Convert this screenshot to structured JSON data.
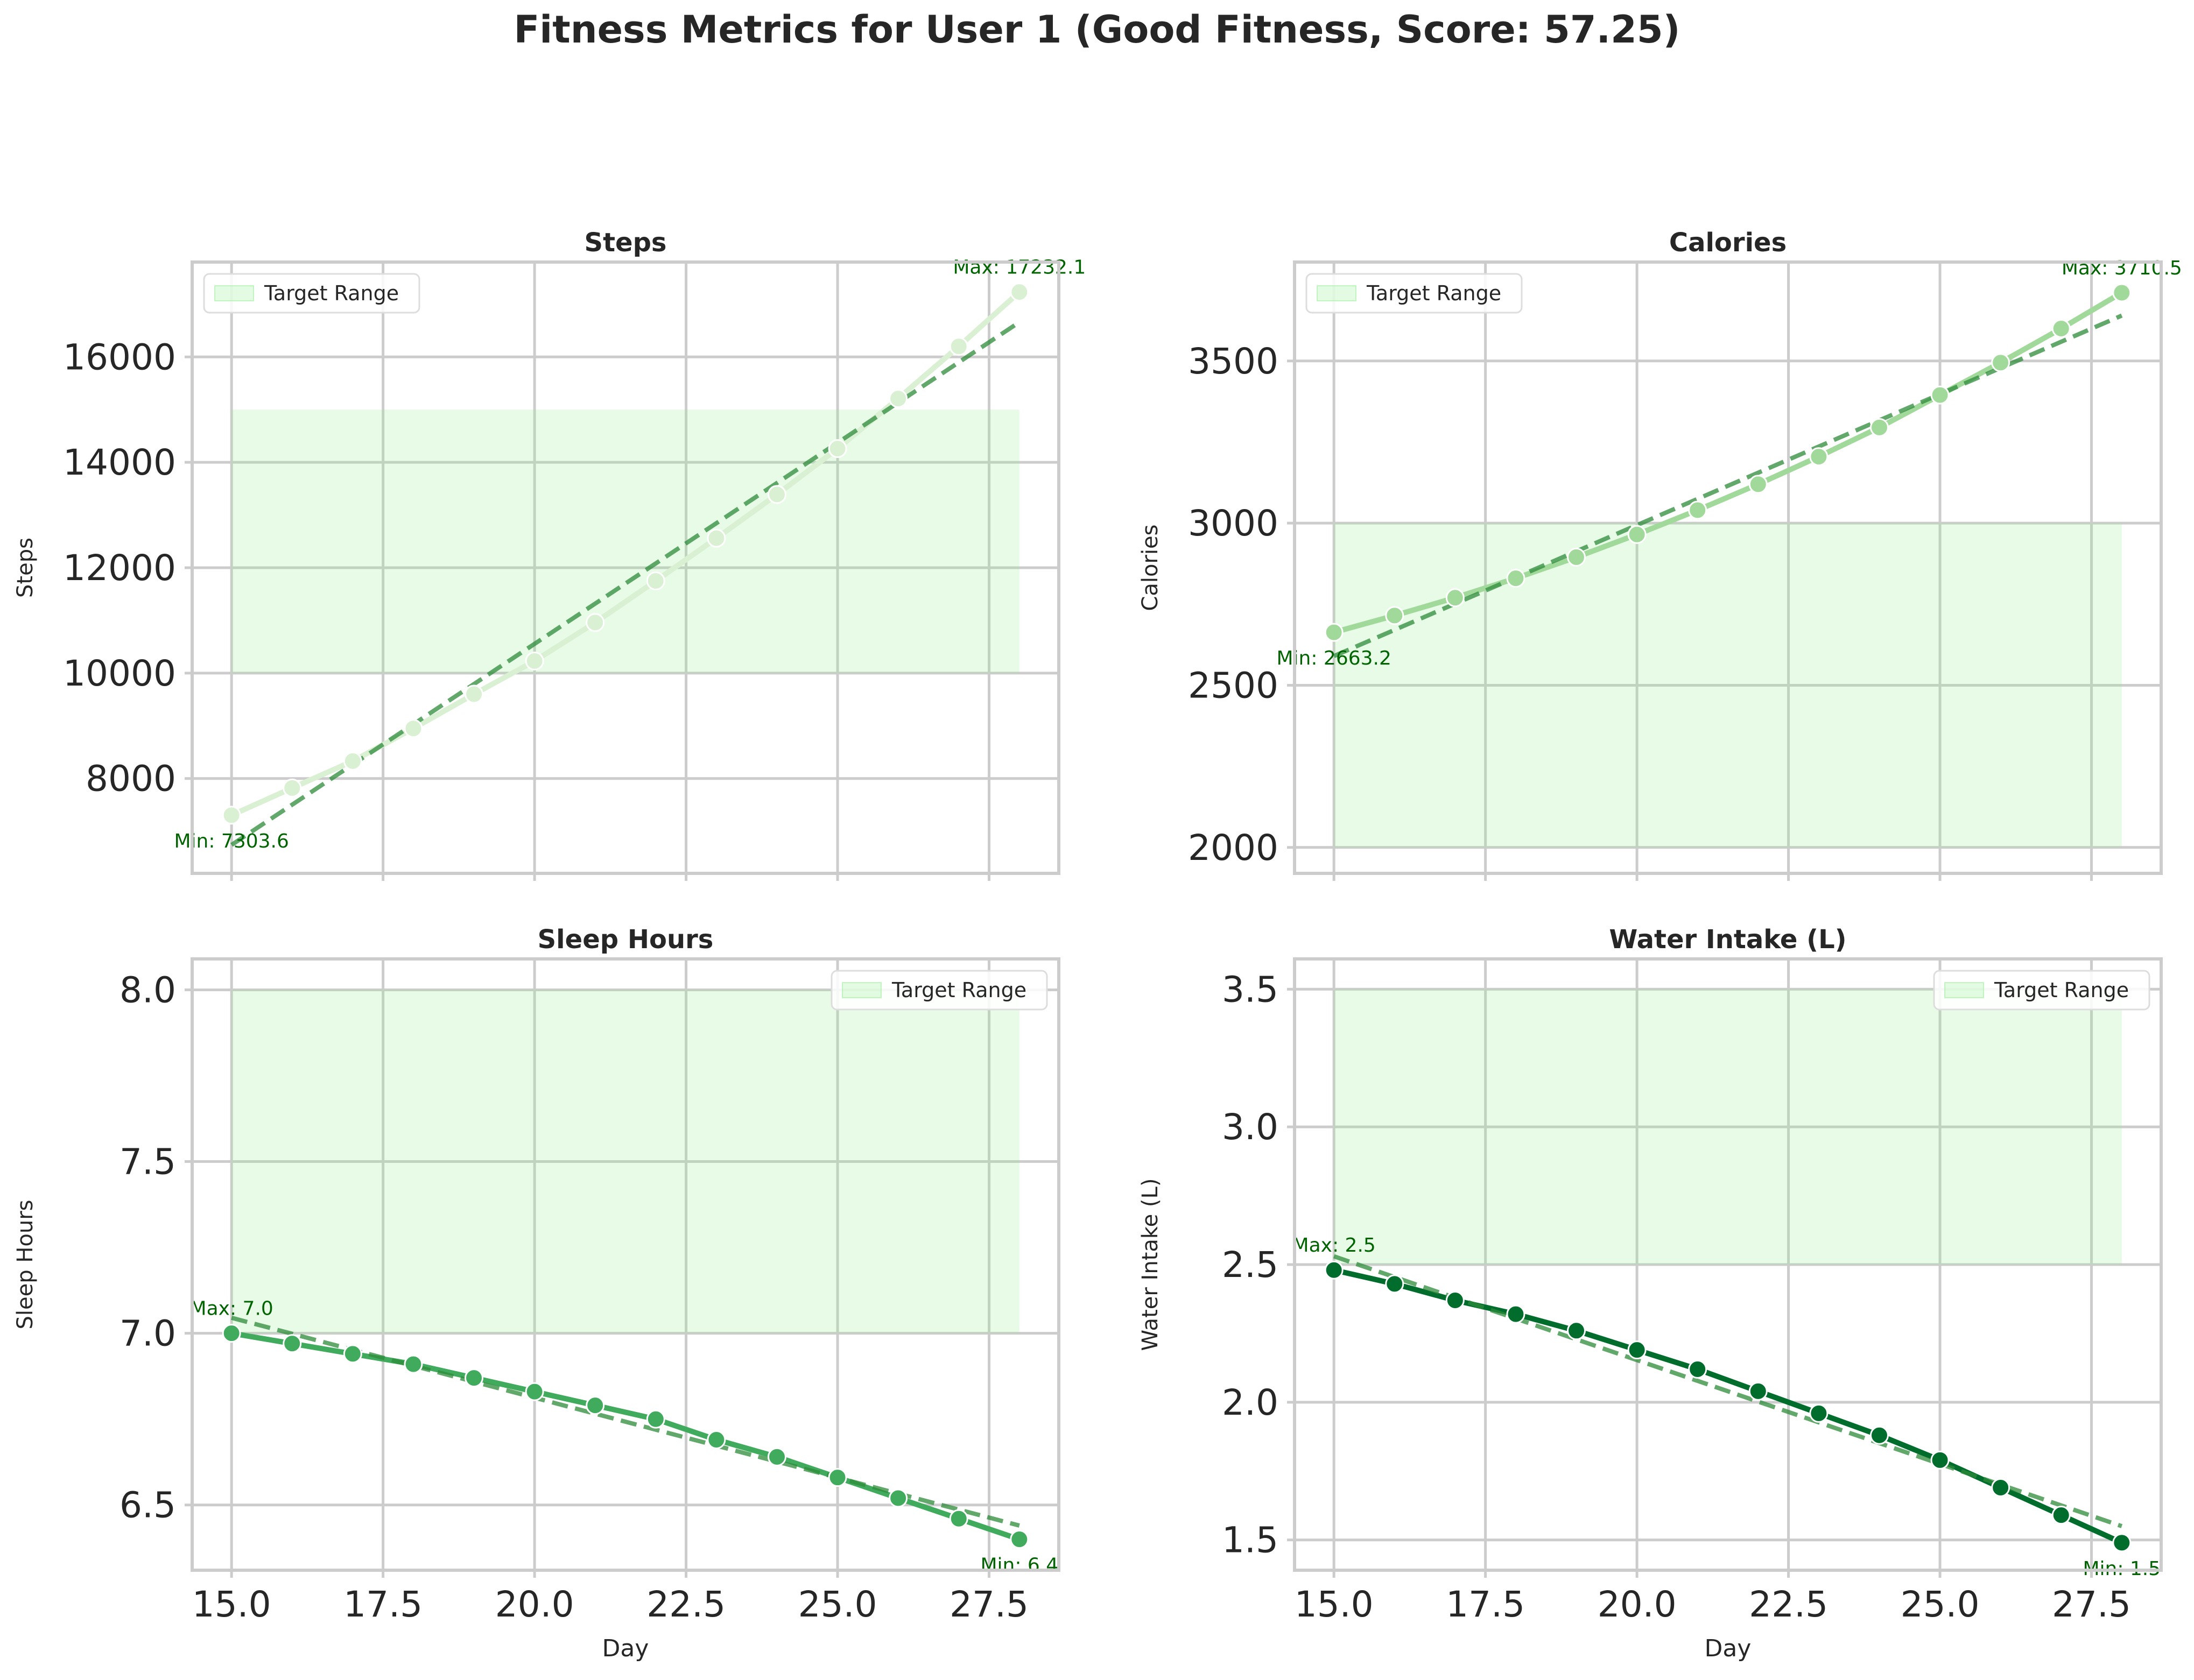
{
  "figure": {
    "title": "Fitness Metrics for User 1 (Good Fitness, Score: 57.25)"
  },
  "chart_data": [
    {
      "type": "line",
      "title": "Steps",
      "xlabel": "",
      "ylabel": "Steps",
      "x": [
        15,
        16,
        17,
        18,
        19,
        20,
        21,
        22,
        23,
        24,
        25,
        26,
        27,
        28
      ],
      "series": [
        {
          "values": [
            7303.6,
            7820,
            8330,
            8950,
            9600,
            10230,
            10960,
            11750,
            12560,
            13390,
            14260,
            15210,
            16200,
            17232.1
          ],
          "color": "#d9f0d3"
        }
      ],
      "trend": {
        "start": 6740,
        "end": 16660,
        "color": "#2e8b3a"
      },
      "target_range": {
        "low": 10000,
        "high": 15000,
        "label": "Target Range",
        "color": "#90ee90"
      },
      "annotations": {
        "max": "Max: 17232.1",
        "min": "Min: 7303.6",
        "max_value": 17232.1,
        "min_value": 7303.6
      },
      "xlim": [
        14.35,
        28.65
      ],
      "ylim": [
        6200,
        17800
      ],
      "xticks": [
        15.0,
        17.5,
        20.0,
        22.5,
        25.0,
        27.5
      ],
      "xtick_labels": [],
      "yticks": [
        8000,
        10000,
        12000,
        14000,
        16000
      ],
      "ytick_labels": [
        "8000",
        "10000",
        "12000",
        "14000",
        "16000"
      ],
      "legend_position": "upper left",
      "grid": true
    },
    {
      "type": "line",
      "title": "Calories",
      "xlabel": "",
      "ylabel": "Calories",
      "x": [
        15,
        16,
        17,
        18,
        19,
        20,
        21,
        22,
        23,
        24,
        25,
        26,
        27,
        28
      ],
      "series": [
        {
          "values": [
            2663.2,
            2715,
            2770,
            2830,
            2895,
            2965,
            3040,
            3120,
            3205,
            3295,
            3395,
            3495,
            3600,
            3710.5
          ],
          "color": "#a1d99b"
        }
      ],
      "trend": {
        "start": 2590,
        "end": 3640,
        "color": "#2e8b3a"
      },
      "target_range": {
        "low": 2000,
        "high": 3000,
        "label": "Target Range",
        "color": "#90ee90"
      },
      "annotations": {
        "max": "Max: 3710.5",
        "min": "Min: 2663.2",
        "max_value": 3710.5,
        "min_value": 2663.2
      },
      "xlim": [
        14.35,
        28.65
      ],
      "ylim": [
        1920,
        3805
      ],
      "xticks": [
        15.0,
        17.5,
        20.0,
        22.5,
        25.0,
        27.5
      ],
      "xtick_labels": [],
      "yticks": [
        2000,
        2500,
        3000,
        3500
      ],
      "ytick_labels": [
        "2000",
        "2500",
        "3000",
        "3500"
      ],
      "legend_position": "upper left",
      "grid": true
    },
    {
      "type": "line",
      "title": "Sleep Hours",
      "xlabel": "Day",
      "ylabel": "Sleep Hours",
      "x": [
        15,
        16,
        17,
        18,
        19,
        20,
        21,
        22,
        23,
        24,
        25,
        26,
        27,
        28
      ],
      "series": [
        {
          "values": [
            7.0,
            6.97,
            6.94,
            6.91,
            6.87,
            6.83,
            6.79,
            6.75,
            6.69,
            6.64,
            6.58,
            6.52,
            6.46,
            6.4
          ],
          "color": "#41ab5d"
        }
      ],
      "trend": {
        "start": 7.045,
        "end": 6.44,
        "color": "#2e8b3a"
      },
      "target_range": {
        "low": 7.0,
        "high": 8.0,
        "label": "Target Range",
        "color": "#90ee90"
      },
      "annotations": {
        "max": "Max: 7.0",
        "min": "Min: 6.4",
        "max_value": 7.0,
        "min_value": 6.4
      },
      "xlim": [
        14.35,
        28.65
      ],
      "ylim": [
        6.31,
        8.09
      ],
      "xticks": [
        15.0,
        17.5,
        20.0,
        22.5,
        25.0,
        27.5
      ],
      "xtick_labels": [
        "15.0",
        "17.5",
        "20.0",
        "22.5",
        "25.0",
        "27.5"
      ],
      "yticks": [
        6.5,
        7.0,
        7.5,
        8.0
      ],
      "ytick_labels": [
        "6.5",
        "7.0",
        "7.5",
        "8.0"
      ],
      "legend_position": "upper right",
      "grid": true
    },
    {
      "type": "line",
      "title": "Water Intake (L)",
      "xlabel": "Day",
      "ylabel": "Water Intake (L)",
      "x": [
        15,
        16,
        17,
        18,
        19,
        20,
        21,
        22,
        23,
        24,
        25,
        26,
        27,
        28
      ],
      "series": [
        {
          "values": [
            2.48,
            2.43,
            2.37,
            2.32,
            2.26,
            2.19,
            2.12,
            2.04,
            1.96,
            1.88,
            1.79,
            1.69,
            1.59,
            1.49
          ],
          "color": "#006d2c"
        }
      ],
      "trend": {
        "start": 2.53,
        "end": 1.55,
        "color": "#2e8b3a"
      },
      "target_range": {
        "low": 2.5,
        "high": 3.5,
        "label": "Target Range",
        "color": "#90ee90"
      },
      "annotations": {
        "max": "Max: 2.5",
        "min": "Min: 1.5",
        "max_value": 2.48,
        "min_value": 1.49
      },
      "xlim": [
        14.35,
        28.65
      ],
      "ylim": [
        1.39,
        3.61
      ],
      "xticks": [
        15.0,
        17.5,
        20.0,
        22.5,
        25.0,
        27.5
      ],
      "xtick_labels": [
        "15.0",
        "17.5",
        "20.0",
        "22.5",
        "25.0",
        "27.5"
      ],
      "yticks": [
        1.5,
        2.0,
        2.5,
        3.0,
        3.5
      ],
      "ytick_labels": [
        "1.5",
        "2.0",
        "2.5",
        "3.0",
        "3.5"
      ],
      "legend_position": "upper right",
      "grid": true
    }
  ]
}
